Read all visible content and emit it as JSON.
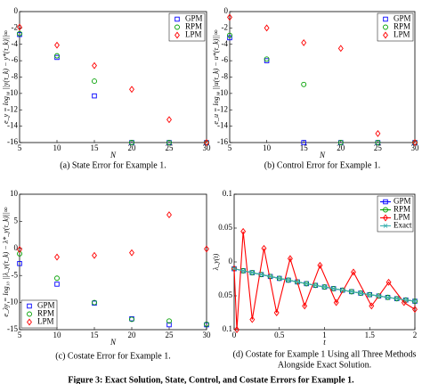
{
  "chart_data": [
    {
      "type": "scatter",
      "caption": "(a) State Error for Example 1.",
      "xlabel": "N",
      "ylabel": "e_y = log₁₀ ||y(τ_k) − y*(τ_k)||∞",
      "x": [
        5,
        10,
        15,
        20,
        25,
        30
      ],
      "xlim": [
        5,
        30
      ],
      "xticks": [
        5,
        10,
        15,
        20,
        25,
        30
      ],
      "ylim": [
        -16,
        0
      ],
      "yticks": [
        -16,
        -14,
        -12,
        -10,
        -8,
        -6,
        -4,
        -2,
        0
      ],
      "legend": "upper right",
      "series": [
        {
          "name": "GPM",
          "color": "#0000ff",
          "marker": "square",
          "values": [
            -2.8,
            -5.6,
            -10.3,
            -16,
            -16,
            -16
          ]
        },
        {
          "name": "RPM",
          "color": "#00a000",
          "marker": "circle",
          "values": [
            -2.7,
            -5.4,
            -8.5,
            -16,
            -16,
            -16
          ]
        },
        {
          "name": "LPM",
          "color": "#ff0000",
          "marker": "diamond",
          "values": [
            -1.9,
            -4.1,
            -6.6,
            -9.5,
            -13.2,
            -16
          ]
        }
      ]
    },
    {
      "type": "scatter",
      "caption": "(b) Control Error for Example 1.",
      "xlabel": "N",
      "ylabel": "e_u = log₁₀ ||u(τ_k) − u*(τ_k)||∞",
      "x": [
        5,
        10,
        15,
        20,
        25,
        30
      ],
      "xlim": [
        5,
        30
      ],
      "xticks": [
        5,
        10,
        15,
        20,
        25,
        30
      ],
      "ylim": [
        -16,
        0
      ],
      "yticks": [
        -16,
        -14,
        -12,
        -10,
        -8,
        -6,
        -4,
        -2,
        0
      ],
      "legend": "upper right",
      "series": [
        {
          "name": "GPM",
          "color": "#0000ff",
          "marker": "square",
          "values": [
            -3.2,
            -6.0,
            -16,
            -16,
            -16,
            -16
          ]
        },
        {
          "name": "RPM",
          "color": "#00a000",
          "marker": "circle",
          "values": [
            -2.9,
            -5.8,
            -8.9,
            -16,
            -16,
            -16
          ]
        },
        {
          "name": "LPM",
          "color": "#ff0000",
          "marker": "diamond",
          "values": [
            -0.7,
            -2.0,
            -3.8,
            -4.5,
            -14.9,
            -16
          ]
        }
      ]
    },
    {
      "type": "scatter",
      "caption": "(c) Costate Error for Example 1.",
      "xlabel": "N",
      "ylabel": "e_λy = log₁₀ ||λ_y(τ_k) − λ*_y(τ_k)||∞",
      "x": [
        5,
        10,
        15,
        20,
        25,
        30
      ],
      "xlim": [
        5,
        30
      ],
      "xticks": [
        5,
        10,
        15,
        20,
        25,
        30
      ],
      "ylim": [
        -15,
        10
      ],
      "yticks": [
        -15,
        -10,
        -5,
        0,
        5,
        10
      ],
      "legend": "lower left",
      "series": [
        {
          "name": "GPM",
          "color": "#0000ff",
          "marker": "square",
          "values": [
            -2.8,
            -6.6,
            -10.1,
            -13.0,
            -14.1,
            -14.1
          ]
        },
        {
          "name": "RPM",
          "color": "#00a000",
          "marker": "circle",
          "values": [
            -1.0,
            -5.5,
            -10.0,
            -13.1,
            -13.4,
            -14.0
          ]
        },
        {
          "name": "LPM",
          "color": "#ff0000",
          "marker": "diamond",
          "values": [
            -0.2,
            -1.6,
            -1.3,
            -0.8,
            6.2,
            -0.1
          ]
        }
      ]
    },
    {
      "type": "line",
      "caption": "(d) Costate for Example 1 Using all Three Methods",
      "caption2": "Alongside Exact Solution.",
      "xlabel": "t",
      "ylabel": "λ_y(t)",
      "xlim": [
        0,
        2
      ],
      "xticks": [
        0,
        0.5,
        1,
        1.5,
        2
      ],
      "ylim": [
        -0.1,
        0.1
      ],
      "yticks": [
        {
          "value": -0.1,
          "label": "0.1"
        },
        {
          "value": -0.05,
          "label": "0.05"
        },
        0,
        0.05,
        0.1
      ],
      "legend": "upper right",
      "series": [
        {
          "name": "GPM",
          "color": "#0000ff",
          "marker": "square",
          "x": [
            0,
            0.1,
            0.2,
            0.3,
            0.4,
            0.5,
            0.6,
            0.7,
            0.8,
            0.9,
            1,
            1.1,
            1.2,
            1.3,
            1.4,
            1.5,
            1.6,
            1.7,
            1.8,
            1.9,
            2
          ],
          "values": [
            -0.01,
            -0.013,
            -0.0159,
            -0.0187,
            -0.0215,
            -0.0243,
            -0.0269,
            -0.0295,
            -0.0321,
            -0.0346,
            -0.037,
            -0.0394,
            -0.0417,
            -0.0439,
            -0.0461,
            -0.0483,
            -0.0503,
            -0.0523,
            -0.0543,
            -0.0562,
            -0.058
          ]
        },
        {
          "name": "RPM",
          "color": "#00a000",
          "marker": "circle",
          "x": [
            0,
            0.1,
            0.2,
            0.3,
            0.4,
            0.5,
            0.6,
            0.7,
            0.8,
            0.9,
            1,
            1.1,
            1.2,
            1.3,
            1.4,
            1.5,
            1.6,
            1.7,
            1.8,
            1.9,
            2
          ],
          "values": [
            -0.01,
            -0.013,
            -0.0159,
            -0.0187,
            -0.0215,
            -0.0243,
            -0.0269,
            -0.0295,
            -0.0321,
            -0.0346,
            -0.037,
            -0.0394,
            -0.0417,
            -0.0439,
            -0.0461,
            -0.0483,
            -0.0503,
            -0.0523,
            -0.0543,
            -0.0562,
            -0.058
          ]
        },
        {
          "name": "LPM",
          "color": "#ff0000",
          "marker": "diamond",
          "x": [
            0,
            0.03,
            0.1,
            0.2,
            0.33,
            0.47,
            0.62,
            0.78,
            0.95,
            1.13,
            1.32,
            1.52,
            1.71,
            1.88,
            2
          ],
          "values": [
            -0.01,
            -0.1,
            0.045,
            -0.085,
            0.02,
            -0.075,
            0.005,
            -0.065,
            -0.005,
            -0.06,
            -0.015,
            -0.065,
            -0.03,
            -0.06,
            -0.07
          ]
        },
        {
          "name": "Exact",
          "color": "#3fb0b0",
          "marker": "cross",
          "x": [
            0,
            0.1,
            0.2,
            0.3,
            0.4,
            0.5,
            0.6,
            0.7,
            0.8,
            0.9,
            1,
            1.1,
            1.2,
            1.3,
            1.4,
            1.5,
            1.6,
            1.7,
            1.8,
            1.9,
            2
          ],
          "values": [
            -0.01,
            -0.013,
            -0.0159,
            -0.0187,
            -0.0215,
            -0.0243,
            -0.0269,
            -0.0295,
            -0.0321,
            -0.0346,
            -0.037,
            -0.0394,
            -0.0417,
            -0.0439,
            -0.0461,
            -0.0483,
            -0.0503,
            -0.0523,
            -0.0543,
            -0.0562,
            -0.058
          ]
        }
      ]
    }
  ],
  "caption": "Figure 3: Exact Solution, State, Control, and Costate Errors for Example 1."
}
